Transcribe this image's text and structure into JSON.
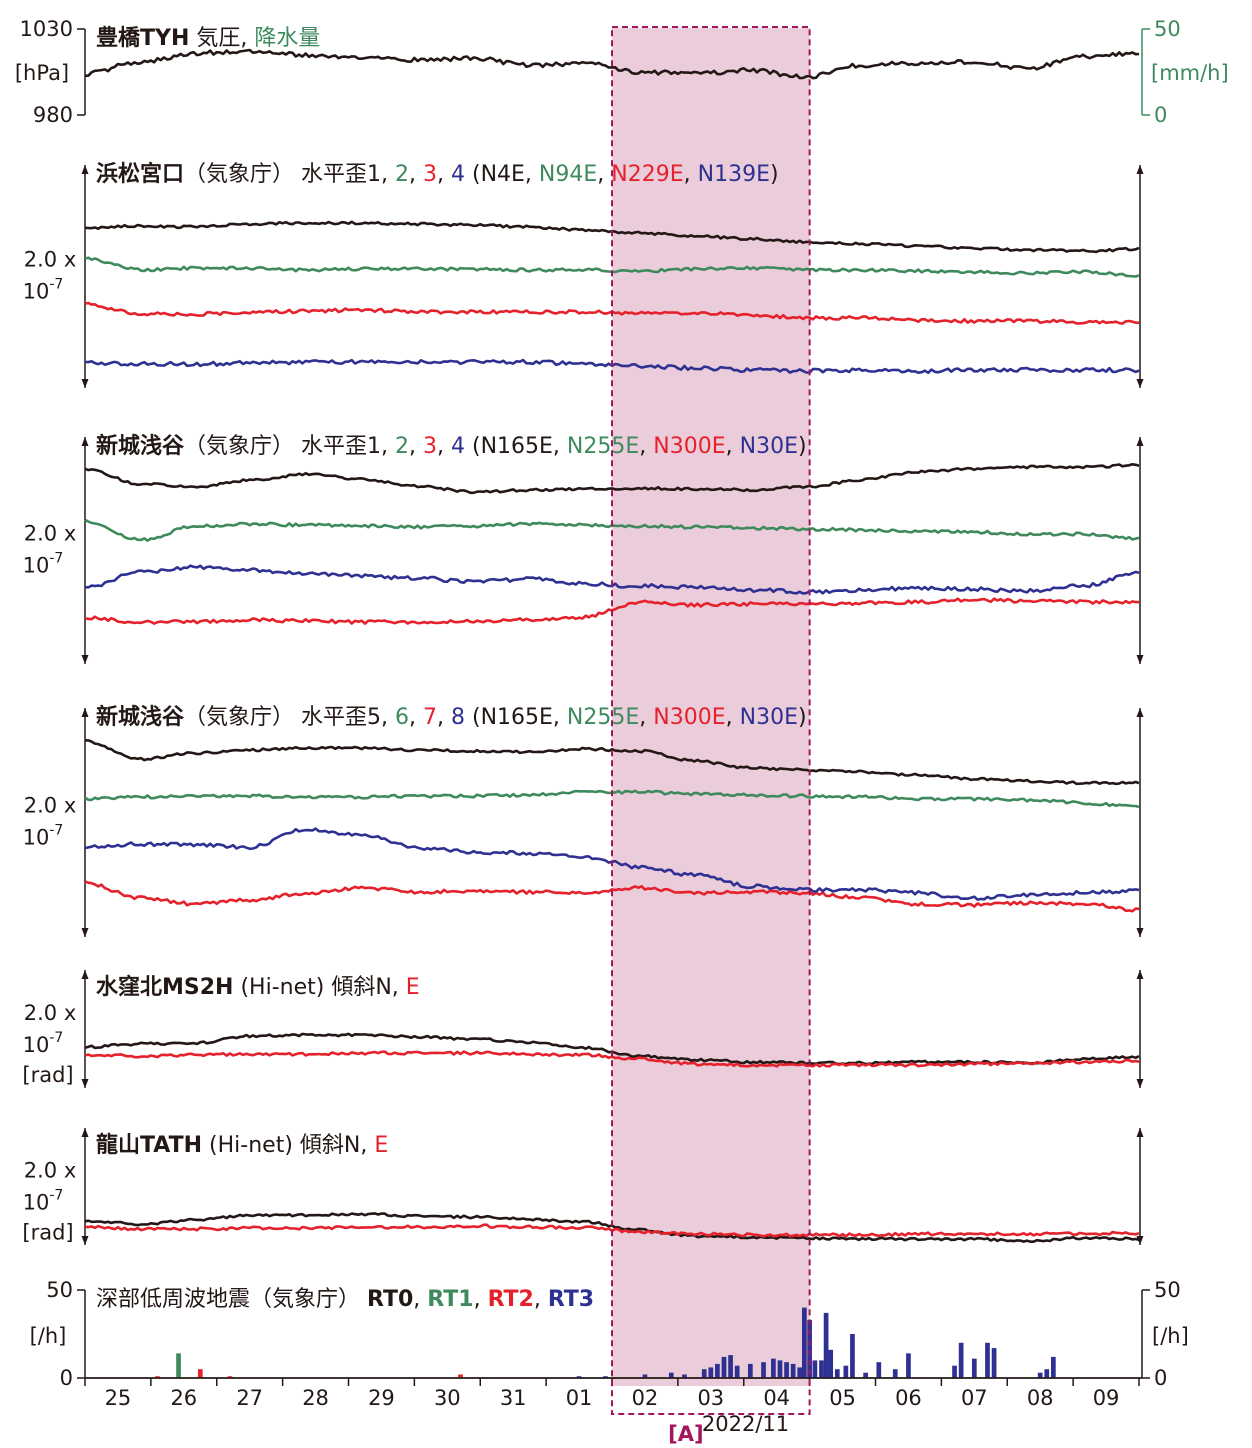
{
  "colors": {
    "black": "#231815",
    "green": "#3e8a5c",
    "red": "#e5212b",
    "blue": "#2e3192",
    "highlight_fill": "#e6c3d3",
    "highlight_border": "#a3155c"
  },
  "chart_data": [
    {
      "type": "line",
      "title": "豊橋TYH 気圧, 降水量",
      "title_parts": [
        {
          "text": "豊橋TYH",
          "bold": true,
          "color": "black"
        },
        {
          "text": " 気圧, ",
          "bold": false,
          "color": "black"
        },
        {
          "text": "降水量",
          "bold": false,
          "color": "green"
        }
      ],
      "y_left": {
        "ticks": [
          "1030",
          "980"
        ],
        "unit": "[hPa]",
        "ylim": [
          980,
          1030
        ]
      },
      "y_right": {
        "ticks": [
          "50",
          "0"
        ],
        "unit": "[mm/h]",
        "color": "green",
        "ylim": [
          0,
          50
        ]
      },
      "series": [
        {
          "color": "black",
          "values": [
            1004,
            1011,
            1016,
            1017,
            1015,
            1013,
            1012,
            1013,
            1009,
            1010,
            1005,
            1004,
            1006,
            1002,
            1009,
            1010,
            1011,
            1007,
            1014,
            1016
          ]
        }
      ]
    },
    {
      "type": "line",
      "title": "浜松宮口（気象庁） 水平歪1, 2, 3, 4 (N4E, N94E, N229E, N139E)",
      "title_parts": [
        {
          "text": "浜松宮口",
          "bold": true,
          "color": "black"
        },
        {
          "text": "（気象庁） 水平歪1, ",
          "bold": false,
          "color": "black"
        },
        {
          "text": "2",
          "bold": false,
          "color": "green"
        },
        {
          "text": ", ",
          "bold": false,
          "color": "black"
        },
        {
          "text": "3",
          "bold": false,
          "color": "red"
        },
        {
          "text": ", ",
          "bold": false,
          "color": "black"
        },
        {
          "text": "4",
          "bold": false,
          "color": "blue"
        },
        {
          "text": " (N4E, ",
          "bold": false,
          "color": "black"
        },
        {
          "text": "N94E",
          "bold": false,
          "color": "green"
        },
        {
          "text": ", ",
          "bold": false,
          "color": "black"
        },
        {
          "text": "N229E",
          "bold": false,
          "color": "red"
        },
        {
          "text": ", ",
          "bold": false,
          "color": "black"
        },
        {
          "text": "N139E",
          "bold": false,
          "color": "blue"
        },
        {
          "text": ")",
          "bold": false,
          "color": "black"
        }
      ],
      "scale": [
        "2.0 x",
        "10",
        "-7",
        ""
      ],
      "series": [
        {
          "color": "black",
          "values": [
            -28,
            -26,
            -27,
            -24,
            -23,
            -23,
            -24,
            -25,
            -27,
            -30,
            -33,
            -36,
            -39,
            -42,
            -44,
            -46,
            -48,
            -50,
            -51,
            -49
          ]
        },
        {
          "color": "green",
          "values": [
            -58,
            -70,
            -68,
            -68,
            -70,
            -69,
            -69,
            -69,
            -70,
            -70,
            -71,
            -69,
            -68,
            -70,
            -70,
            -71,
            -72,
            -73,
            -72,
            -76
          ]
        },
        {
          "color": "red",
          "values": [
            -104,
            -114,
            -114,
            -112,
            -111,
            -110,
            -112,
            -112,
            -112,
            -112,
            -113,
            -113,
            -115,
            -118,
            -118,
            -120,
            -121,
            -121,
            -122,
            -122
          ]
        },
        {
          "color": "blue",
          "values": [
            -163,
            -164,
            -164,
            -163,
            -162,
            -162,
            -162,
            -162,
            -162,
            -164,
            -166,
            -168,
            -170,
            -171,
            -170,
            -171,
            -170,
            -170,
            -170,
            -170
          ]
        }
      ]
    },
    {
      "type": "line",
      "title": "新城浅谷（気象庁） 水平歪1, 2, 3, 4 (N165E, N255E, N300E, N30E)",
      "title_parts": [
        {
          "text": "新城浅谷",
          "bold": true,
          "color": "black"
        },
        {
          "text": "（気象庁） 水平歪1, ",
          "bold": false,
          "color": "black"
        },
        {
          "text": "2",
          "bold": false,
          "color": "green"
        },
        {
          "text": ", ",
          "bold": false,
          "color": "black"
        },
        {
          "text": "3",
          "bold": false,
          "color": "red"
        },
        {
          "text": ", ",
          "bold": false,
          "color": "black"
        },
        {
          "text": "4",
          "bold": false,
          "color": "blue"
        },
        {
          "text": " (N165E, ",
          "bold": false,
          "color": "black"
        },
        {
          "text": "N255E",
          "bold": false,
          "color": "green"
        },
        {
          "text": ", ",
          "bold": false,
          "color": "black"
        },
        {
          "text": "N300E",
          "bold": false,
          "color": "red"
        },
        {
          "text": ", ",
          "bold": false,
          "color": "black"
        },
        {
          "text": "N30E",
          "bold": false,
          "color": "blue"
        },
        {
          "text": ")",
          "bold": false,
          "color": "black"
        }
      ],
      "scale": [
        "2.0 x",
        "10",
        "-7",
        ""
      ],
      "series": [
        {
          "color": "black",
          "values": [
            -17,
            -32,
            -35,
            -28,
            -22,
            -27,
            -34,
            -40,
            -38,
            -37,
            -36,
            -37,
            -38,
            -35,
            -28,
            -20,
            -17,
            -15,
            -15,
            -13
          ]
        },
        {
          "color": "green",
          "values": [
            -69,
            -88,
            -74,
            -72,
            -73,
            -74,
            -75,
            -74,
            -72,
            -73,
            -74,
            -75,
            -76,
            -77,
            -78,
            -79,
            -80,
            -82,
            -82,
            -87
          ]
        },
        {
          "color": "red",
          "values": [
            -166,
            -170,
            -170,
            -168,
            -169,
            -170,
            -170,
            -169,
            -168,
            -165,
            -150,
            -153,
            -152,
            -152,
            -151,
            -150,
            -148,
            -149,
            -150,
            -150
          ]
        },
        {
          "color": "blue",
          "values": [
            -136,
            -120,
            -115,
            -118,
            -122,
            -124,
            -126,
            -130,
            -127,
            -132,
            -134,
            -135,
            -138,
            -140,
            -138,
            -136,
            -137,
            -139,
            -134,
            -121
          ]
        }
      ]
    },
    {
      "type": "line",
      "title": "新城浅谷（気象庁） 水平歪5, 6, 7, 8 (N165E, N255E, N300E, N30E)",
      "title_parts": [
        {
          "text": "新城浅谷",
          "bold": true,
          "color": "black"
        },
        {
          "text": "（気象庁） 水平歪5, ",
          "bold": false,
          "color": "black"
        },
        {
          "text": "6",
          "bold": false,
          "color": "green"
        },
        {
          "text": ", ",
          "bold": false,
          "color": "black"
        },
        {
          "text": "7",
          "bold": false,
          "color": "red"
        },
        {
          "text": ", ",
          "bold": false,
          "color": "black"
        },
        {
          "text": "8",
          "bold": false,
          "color": "blue"
        },
        {
          "text": " (N165E, ",
          "bold": false,
          "color": "black"
        },
        {
          "text": "N255E",
          "bold": false,
          "color": "green"
        },
        {
          "text": ", ",
          "bold": false,
          "color": "black"
        },
        {
          "text": "N300E",
          "bold": false,
          "color": "red"
        },
        {
          "text": ", ",
          "bold": false,
          "color": "black"
        },
        {
          "text": "N30E",
          "bold": false,
          "color": "blue"
        },
        {
          "text": ")",
          "bold": false,
          "color": "black"
        }
      ],
      "scale": [
        "2.0 x",
        "10",
        "-7",
        ""
      ],
      "series": [
        {
          "color": "black",
          "values": [
            -8,
            -26,
            -20,
            -17,
            -15,
            -15,
            -17,
            -18,
            -19,
            -16,
            -18,
            -28,
            -35,
            -37,
            -39,
            -42,
            -46,
            -48,
            -50,
            -50
          ]
        },
        {
          "color": "green",
          "values": [
            -66,
            -64,
            -63,
            -63,
            -64,
            -64,
            -63,
            -63,
            -62,
            -59,
            -59,
            -61,
            -62,
            -63,
            -64,
            -66,
            -66,
            -67,
            -70,
            -74
          ]
        },
        {
          "color": "red",
          "values": [
            -150,
            -165,
            -171,
            -167,
            -160,
            -155,
            -159,
            -158,
            -159,
            -160,
            -155,
            -160,
            -159,
            -160,
            -165,
            -171,
            -172,
            -170,
            -171,
            -177
          ]
        },
        {
          "color": "blue",
          "values": [
            -114,
            -111,
            -112,
            -114,
            -96,
            -102,
            -115,
            -119,
            -120,
            -124,
            -134,
            -142,
            -153,
            -157,
            -157,
            -160,
            -165,
            -162,
            -160,
            -158
          ]
        }
      ]
    },
    {
      "type": "line",
      "title": "水窪北MS2H (Hi-net) 傾斜N, E",
      "title_parts": [
        {
          "text": "水窪北MS2H",
          "bold": true,
          "color": "black"
        },
        {
          "text": " (Hi-net) 傾斜N, ",
          "bold": false,
          "color": "black"
        },
        {
          "text": "E",
          "bold": false,
          "color": "red"
        }
      ],
      "scale": [
        "2.0 x",
        "10",
        "-7",
        "[rad]"
      ],
      "series": [
        {
          "color": "black",
          "values": [
            -7,
            -4,
            -3,
            4,
            5,
            5,
            3,
            1,
            -2,
            -8,
            -16,
            -20,
            -22,
            -23,
            -23,
            -22,
            -22,
            -23,
            -19,
            -17
          ]
        },
        {
          "color": "red",
          "values": [
            -15,
            -16,
            -15,
            -14,
            -14,
            -13,
            -13,
            -13,
            -14,
            -15,
            -19,
            -24,
            -25,
            -25,
            -25,
            -25,
            -24,
            -23,
            -22,
            -21
          ]
        }
      ]
    },
    {
      "type": "line",
      "title": "龍山TATH (Hi-net) 傾斜N, E",
      "title_parts": [
        {
          "text": "龍山TATH",
          "bold": true,
          "color": "black"
        },
        {
          "text": " (Hi-net) 傾斜N, ",
          "bold": false,
          "color": "black"
        },
        {
          "text": "E",
          "bold": false,
          "color": "red"
        }
      ],
      "scale": [
        "2.0 x",
        "10",
        "-7",
        "[rad]"
      ],
      "series": [
        {
          "color": "black",
          "values": [
            -15,
            -18,
            -14,
            -9,
            -9,
            -8,
            -10,
            -11,
            -13,
            -16,
            -24,
            -30,
            -31,
            -32,
            -33,
            -33,
            -33,
            -35,
            -32,
            -33
          ]
        },
        {
          "color": "red",
          "values": [
            -21,
            -23,
            -23,
            -22,
            -22,
            -21,
            -21,
            -20,
            -21,
            -22,
            -26,
            -28,
            -29,
            -29,
            -29,
            -28,
            -28,
            -28,
            -28,
            -27
          ]
        }
      ]
    },
    {
      "type": "bar",
      "title": "深部低周波地震（気象庁） RT0, RT1, RT2, RT3",
      "title_parts": [
        {
          "text": "深部低周波地震（気象庁） ",
          "bold": false,
          "color": "black"
        },
        {
          "text": "RT0",
          "bold": true,
          "color": "black"
        },
        {
          "text": ", ",
          "bold": false,
          "color": "black"
        },
        {
          "text": "RT1",
          "bold": true,
          "color": "green"
        },
        {
          "text": ", ",
          "bold": false,
          "color": "black"
        },
        {
          "text": "RT2",
          "bold": true,
          "color": "red"
        },
        {
          "text": ", ",
          "bold": false,
          "color": "black"
        },
        {
          "text": "RT3",
          "bold": true,
          "color": "blue"
        }
      ],
      "y_left": {
        "ticks": [
          "50",
          "0"
        ],
        "unit": "[/h]",
        "ylim": [
          0,
          50
        ]
      },
      "y_right": {
        "ticks": [
          "50",
          "0"
        ],
        "unit": "[/h]",
        "ylim": [
          0,
          50
        ]
      },
      "bars": [
        {
          "day": 25.6,
          "value": 1,
          "color": "red"
        },
        {
          "day": 25.92,
          "value": 14,
          "color": "green"
        },
        {
          "day": 26.25,
          "value": 5,
          "color": "red"
        },
        {
          "day": 26.7,
          "value": 1,
          "color": "red"
        },
        {
          "day": 30.2,
          "value": 2,
          "color": "red"
        },
        {
          "day": 32.0,
          "value": 1,
          "color": "blue"
        },
        {
          "day": 32.4,
          "value": 1,
          "color": "blue"
        },
        {
          "day": 33.0,
          "value": 2,
          "color": "blue"
        },
        {
          "day": 33.4,
          "value": 3,
          "color": "blue"
        },
        {
          "day": 33.6,
          "value": 2,
          "color": "blue"
        },
        {
          "day": 33.9,
          "value": 5,
          "color": "blue"
        },
        {
          "day": 34.0,
          "value": 6,
          "color": "blue"
        },
        {
          "day": 34.1,
          "value": 8,
          "color": "blue"
        },
        {
          "day": 34.2,
          "value": 12,
          "color": "blue"
        },
        {
          "day": 34.3,
          "value": 13,
          "color": "blue"
        },
        {
          "day": 34.4,
          "value": 7,
          "color": "blue"
        },
        {
          "day": 34.6,
          "value": 8,
          "color": "blue"
        },
        {
          "day": 34.8,
          "value": 9,
          "color": "blue"
        },
        {
          "day": 34.95,
          "value": 11,
          "color": "blue"
        },
        {
          "day": 35.05,
          "value": 10,
          "color": "blue"
        },
        {
          "day": 35.15,
          "value": 9,
          "color": "blue"
        },
        {
          "day": 35.25,
          "value": 8,
          "color": "blue"
        },
        {
          "day": 35.35,
          "value": 6,
          "color": "blue"
        },
        {
          "day": 35.42,
          "value": 40,
          "color": "blue"
        },
        {
          "day": 35.5,
          "value": 33,
          "color": "blue"
        },
        {
          "day": 35.58,
          "value": 10,
          "color": "blue"
        },
        {
          "day": 35.68,
          "value": 10,
          "color": "blue"
        },
        {
          "day": 35.75,
          "value": 37,
          "color": "blue"
        },
        {
          "day": 35.82,
          "value": 16,
          "color": "blue"
        },
        {
          "day": 35.92,
          "value": 5,
          "color": "blue"
        },
        {
          "day": 36.05,
          "value": 7,
          "color": "blue"
        },
        {
          "day": 36.15,
          "value": 25,
          "color": "blue"
        },
        {
          "day": 36.35,
          "value": 3,
          "color": "blue"
        },
        {
          "day": 36.55,
          "value": 9,
          "color": "blue"
        },
        {
          "day": 36.8,
          "value": 5,
          "color": "blue"
        },
        {
          "day": 37.0,
          "value": 14,
          "color": "blue"
        },
        {
          "day": 37.7,
          "value": 7,
          "color": "blue"
        },
        {
          "day": 37.8,
          "value": 20,
          "color": "blue"
        },
        {
          "day": 38.0,
          "value": 11,
          "color": "blue"
        },
        {
          "day": 38.2,
          "value": 20,
          "color": "blue"
        },
        {
          "day": 38.3,
          "value": 17,
          "color": "blue"
        },
        {
          "day": 39.0,
          "value": 3,
          "color": "blue"
        },
        {
          "day": 39.1,
          "value": 5,
          "color": "blue"
        },
        {
          "day": 39.2,
          "value": 12,
          "color": "blue"
        }
      ]
    }
  ],
  "x_axis": {
    "tick_labels": [
      "25",
      "26",
      "27",
      "28",
      "29",
      "30",
      "31",
      "01",
      "02",
      "03",
      "04",
      "05",
      "06",
      "07",
      "08",
      "09"
    ],
    "date_label": "2022/11",
    "range_days": [
      "2022-10-24T12:00",
      "2022-11-09T12:00"
    ]
  },
  "highlight": {
    "label": "[A]",
    "start": "2022-11-02T12:00",
    "end": "2022-11-05T12:00"
  }
}
